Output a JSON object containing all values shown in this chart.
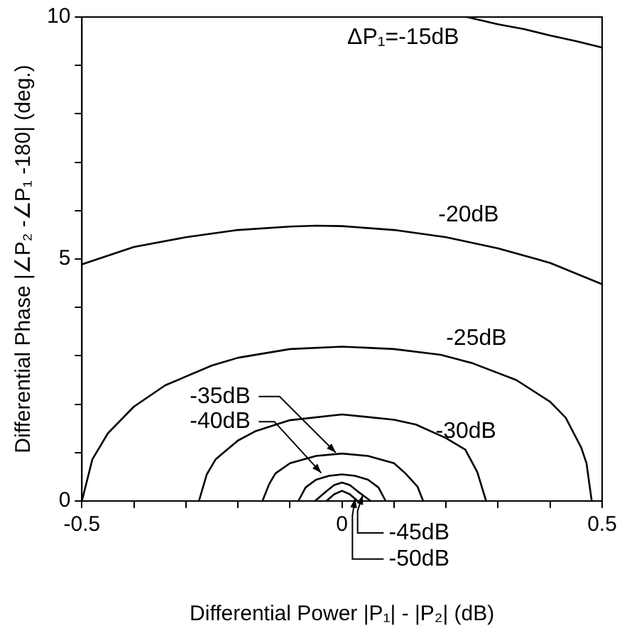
{
  "chart_data": {
    "type": "line",
    "xlabel": "Differential Power |P₁| - |P₂| (dB)",
    "ylabel": "Differential Phase |∠P₂ -∠P₁ -180| (deg.)",
    "xlim": [
      -0.5,
      0.5
    ],
    "ylim": [
      0,
      10
    ],
    "xticks": [
      -0.5,
      {
        "value": -0.4,
        "label": null
      },
      {
        "value": -0.3,
        "label": null
      },
      {
        "value": -0.2,
        "label": null
      },
      {
        "value": -0.1,
        "label": null
      },
      0,
      {
        "value": 0.1,
        "label": null
      },
      {
        "value": 0.2,
        "label": null
      },
      {
        "value": 0.3,
        "label": null
      },
      {
        "value": 0.4,
        "label": null
      },
      0.5
    ],
    "yticks": [
      0,
      {
        "value": 1,
        "label": null
      },
      {
        "value": 2,
        "label": null
      },
      {
        "value": 3,
        "label": null
      },
      {
        "value": 4,
        "label": null
      },
      5,
      {
        "value": 6,
        "label": null
      },
      {
        "value": 7,
        "label": null
      },
      {
        "value": 8,
        "label": null
      },
      {
        "value": 9,
        "label": null
      },
      10
    ],
    "grid": false,
    "legend": false,
    "marker": "none",
    "line_style": "solid",
    "series": [
      {
        "name": "ΔP₁=-15dB",
        "color": "#000000",
        "x": [
          0.24,
          0.3,
          0.35,
          0.4,
          0.45,
          0.5
        ],
        "values": [
          10,
          9.85,
          9.75,
          9.62,
          9.5,
          9.37
        ]
      },
      {
        "name": "-20dB",
        "color": "#000000",
        "x": [
          -0.5,
          -0.4,
          -0.3,
          -0.2,
          -0.1,
          -0.05,
          0,
          0.1,
          0.2,
          0.3,
          0.4,
          0.5
        ],
        "values": [
          4.89,
          5.25,
          5.45,
          5.6,
          5.67,
          5.69,
          5.68,
          5.6,
          5.45,
          5.22,
          4.92,
          4.48
        ]
      },
      {
        "name": "-25dB",
        "color": "#000000",
        "x": [
          -0.5,
          -0.48,
          -0.45,
          -0.4,
          -0.34,
          -0.25,
          -0.2,
          -0.1,
          0,
          0.1,
          0.19,
          0.25,
          0.335,
          0.4,
          0.43,
          0.46,
          0.47,
          0.48
        ],
        "values": [
          0,
          0.86,
          1.4,
          1.95,
          2.39,
          2.8,
          2.96,
          3.14,
          3.19,
          3.14,
          3.02,
          2.85,
          2.5,
          2.05,
          1.72,
          1.1,
          0.78,
          0
        ]
      },
      {
        "name": "-30dB",
        "color": "#000000",
        "x": [
          -0.275,
          -0.26,
          -0.243,
          -0.2,
          -0.167,
          -0.1,
          0,
          0.1,
          0.142,
          0.2,
          0.237,
          0.26,
          0.277
        ],
        "values": [
          0,
          0.55,
          0.86,
          1.25,
          1.44,
          1.67,
          1.79,
          1.68,
          1.58,
          1.3,
          1.06,
          0.6,
          0
        ]
      },
      {
        "name": "-35dB",
        "color": "#000000",
        "x": [
          -0.153,
          -0.14,
          -0.128,
          -0.1,
          -0.05,
          0,
          0.05,
          0.1,
          0.122,
          0.145,
          0.156
        ],
        "values": [
          0,
          0.35,
          0.57,
          0.78,
          0.93,
          0.98,
          0.93,
          0.78,
          0.57,
          0.3,
          0
        ]
      },
      {
        "name": "-40dB",
        "color": "#000000",
        "x": [
          -0.084,
          -0.07,
          -0.05,
          -0.025,
          0,
          0.025,
          0.05,
          0.07,
          0.084
        ],
        "values": [
          0,
          0.28,
          0.44,
          0.52,
          0.55,
          0.52,
          0.44,
          0.28,
          0
        ]
      },
      {
        "name": "-45dB",
        "color": "#000000",
        "x": [
          -0.052,
          -0.03,
          -0.015,
          0,
          0.015,
          0.03,
          0.055
        ],
        "values": [
          0,
          0.2,
          0.33,
          0.38,
          0.33,
          0.2,
          0
        ]
      },
      {
        "name": "-50dB",
        "color": "#000000",
        "x": [
          -0.03,
          -0.015,
          0,
          0.015,
          0.03
        ],
        "values": [
          0,
          0.14,
          0.21,
          0.14,
          0
        ]
      }
    ]
  }
}
